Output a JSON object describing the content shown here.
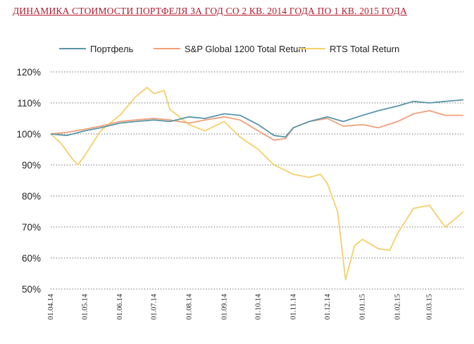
{
  "chart_data": {
    "type": "line",
    "title": "ДИНАМИКА СТОИМОСТИ ПОРТФЕЛЯ ЗА ГОД СО 2 КВ. 2014 ГОДА ПО 1 КВ. 2015 ГОДА",
    "xlabel": "",
    "ylabel": "",
    "ylim": [
      50,
      120
    ],
    "yticks": [
      "120%",
      "110%",
      "100%",
      "90%",
      "80%",
      "70%",
      "60%",
      "50%"
    ],
    "x_tick_labels": [
      "01.04.14",
      "01.05.14",
      "01.06.14",
      "01.07.14",
      "01.08.14",
      "01.09.14",
      "01.10.14",
      "01.11.14",
      "01.12.14",
      "01.01.15",
      "01.02.15",
      "01.03.15"
    ],
    "grid": "horizontal dotted",
    "legend_position": "top",
    "series": [
      {
        "name": "Портфель",
        "color": "#5a96a8",
        "points": [
          [
            "01.04.14",
            100
          ],
          [
            "15.04.14",
            99.5
          ],
          [
            "01.05.14",
            101
          ],
          [
            "15.05.14",
            102
          ],
          [
            "01.06.14",
            103.5
          ],
          [
            "15.06.14",
            104
          ],
          [
            "01.07.14",
            104.5
          ],
          [
            "15.07.14",
            104
          ],
          [
            "01.08.14",
            105.5
          ],
          [
            "15.08.14",
            105
          ],
          [
            "01.09.14",
            106.5
          ],
          [
            "15.09.14",
            106
          ],
          [
            "01.10.14",
            103
          ],
          [
            "15.10.14",
            99.5
          ],
          [
            "25.10.14",
            99
          ],
          [
            "01.11.14",
            102
          ],
          [
            "15.11.14",
            104
          ],
          [
            "01.12.14",
            105.5
          ],
          [
            "15.12.14",
            104
          ],
          [
            "01.01.15",
            106
          ],
          [
            "15.01.15",
            107.5
          ],
          [
            "01.02.15",
            109
          ],
          [
            "15.02.15",
            110.5
          ],
          [
            "01.03.15",
            110
          ],
          [
            "15.03.15",
            110.5
          ],
          [
            "31.03.15",
            111
          ]
        ]
      },
      {
        "name": "S&P Global 1200 Total Return",
        "color": "#f0a07a",
        "points": [
          [
            "01.04.14",
            100
          ],
          [
            "15.04.14",
            100.5
          ],
          [
            "01.05.14",
            101.5
          ],
          [
            "15.05.14",
            102.5
          ],
          [
            "01.06.14",
            104
          ],
          [
            "15.06.14",
            104.5
          ],
          [
            "01.07.14",
            105
          ],
          [
            "15.07.14",
            104.5
          ],
          [
            "01.08.14",
            103.5
          ],
          [
            "15.08.14",
            104.5
          ],
          [
            "01.09.14",
            105.5
          ],
          [
            "15.09.14",
            104.5
          ],
          [
            "01.10.14",
            101
          ],
          [
            "15.10.14",
            98
          ],
          [
            "25.10.14",
            98.5
          ],
          [
            "01.11.14",
            102
          ],
          [
            "15.11.14",
            104
          ],
          [
            "01.12.14",
            105
          ],
          [
            "15.12.14",
            102.5
          ],
          [
            "01.01.15",
            103
          ],
          [
            "15.01.15",
            102
          ],
          [
            "01.02.15",
            104
          ],
          [
            "15.02.15",
            106.5
          ],
          [
            "01.03.15",
            107.5
          ],
          [
            "15.03.15",
            106
          ],
          [
            "31.03.15",
            106
          ]
        ]
      },
      {
        "name": "RTS Total Return",
        "color": "#f5cf6a",
        "points": [
          [
            "01.04.14",
            100
          ],
          [
            "10.04.14",
            97
          ],
          [
            "20.04.14",
            92
          ],
          [
            "25.04.14",
            90
          ],
          [
            "01.05.14",
            93
          ],
          [
            "15.05.14",
            101
          ],
          [
            "01.06.14",
            106
          ],
          [
            "15.06.14",
            112
          ],
          [
            "25.06.14",
            115
          ],
          [
            "01.07.14",
            113
          ],
          [
            "10.07.14",
            114
          ],
          [
            "15.07.14",
            108
          ],
          [
            "01.08.14",
            103
          ],
          [
            "15.08.14",
            101
          ],
          [
            "01.09.14",
            104
          ],
          [
            "15.09.14",
            99
          ],
          [
            "01.10.14",
            95
          ],
          [
            "15.10.14",
            90
          ],
          [
            "01.11.14",
            87
          ],
          [
            "15.11.14",
            86
          ],
          [
            "25.11.14",
            87
          ],
          [
            "01.12.14",
            84
          ],
          [
            "10.12.14",
            75
          ],
          [
            "17.12.14",
            53
          ],
          [
            "25.12.14",
            64
          ],
          [
            "01.01.15",
            66
          ],
          [
            "15.01.15",
            63
          ],
          [
            "25.01.15",
            62.5
          ],
          [
            "01.02.15",
            68
          ],
          [
            "15.02.15",
            76
          ],
          [
            "01.03.15",
            77
          ],
          [
            "15.03.15",
            70
          ],
          [
            "25.03.15",
            73
          ],
          [
            "31.03.15",
            75
          ]
        ]
      }
    ]
  }
}
